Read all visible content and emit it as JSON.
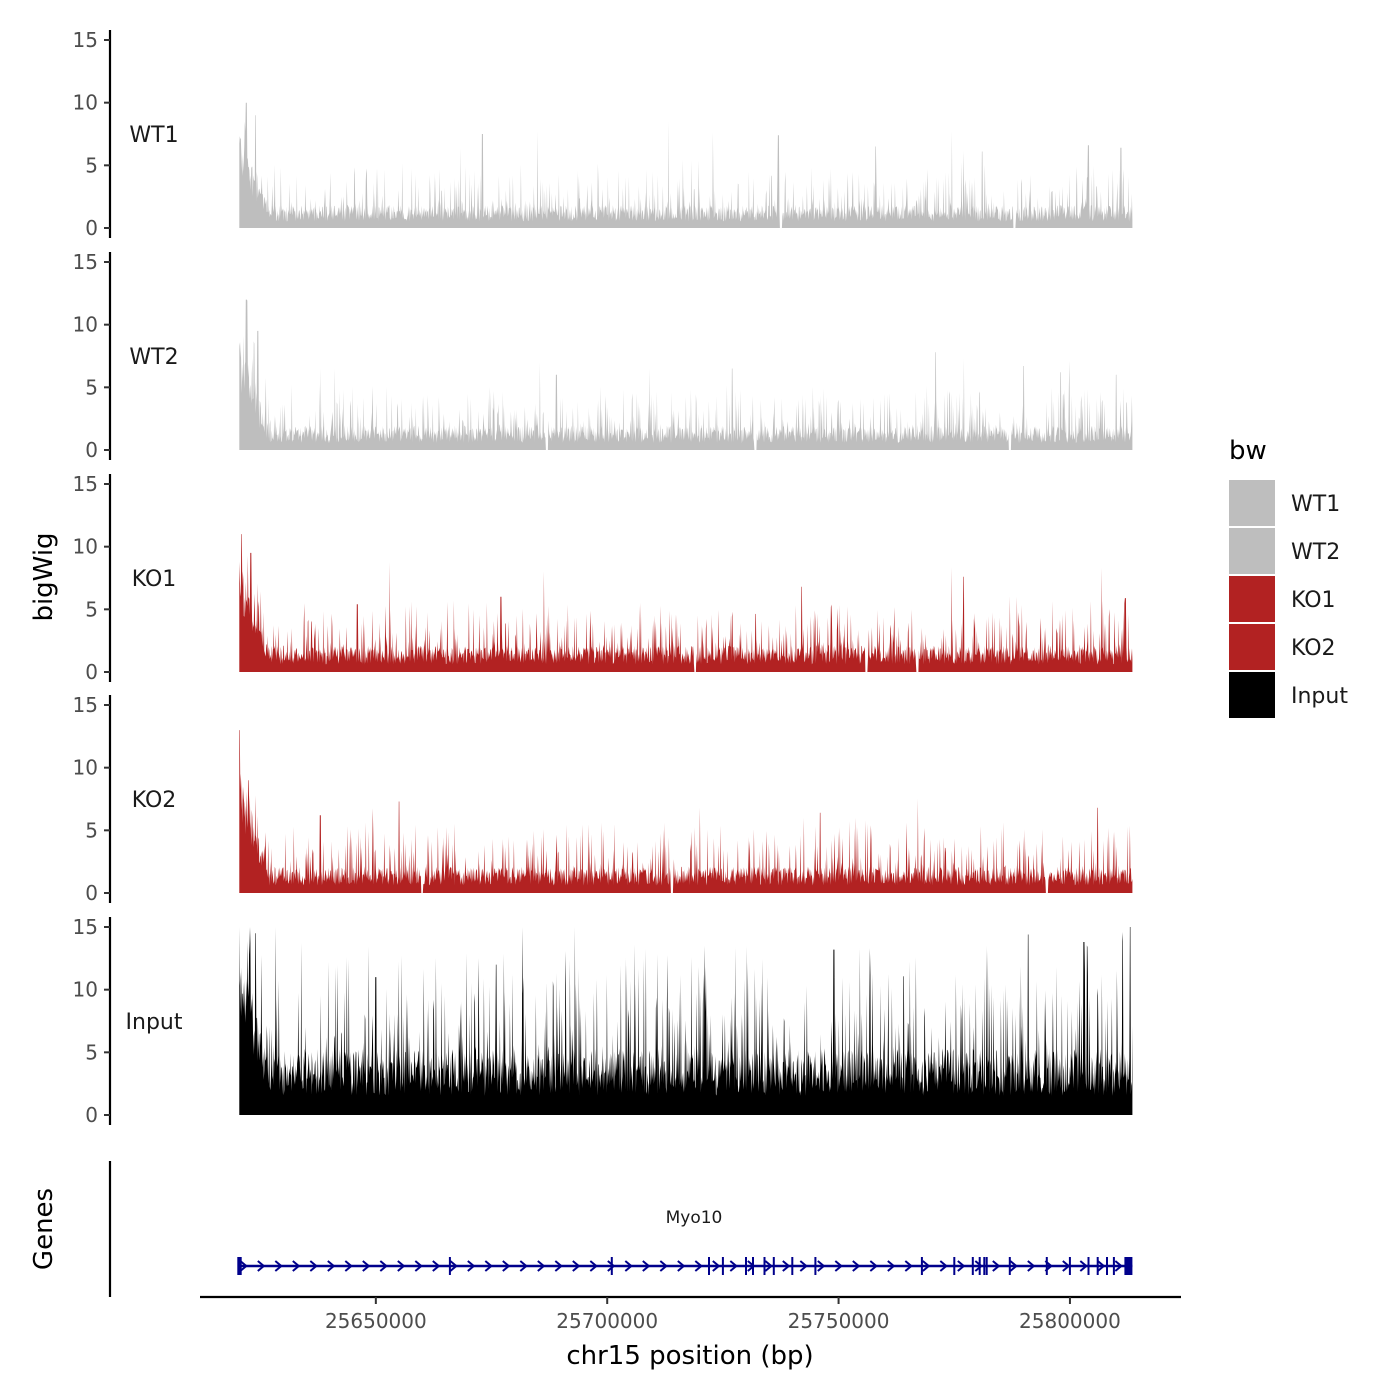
{
  "chart_data": {
    "type": "area",
    "title": "",
    "xlabel": "chr15 position (bp)",
    "ylabel": "bigWig",
    "xlim": [
      25612000,
      25824000
    ],
    "data_range": [
      25620500,
      25813500
    ],
    "ylim": [
      0,
      15
    ],
    "y_ticks": [
      "0",
      "5",
      "10",
      "15"
    ],
    "x_ticks": [
      {
        "value": 25650000,
        "label": "25650000"
      },
      {
        "value": 25700000,
        "label": "25700000"
      },
      {
        "value": 25750000,
        "label": "25750000"
      },
      {
        "value": 25800000,
        "label": "25800000"
      }
    ],
    "series": [
      {
        "name": "WT1",
        "label": "WT1",
        "color": "#BEBEBE",
        "baseline": 1.3,
        "noise": 1.6,
        "peak": 10.0,
        "peaks": [
          [
            25622000,
            10.0
          ],
          [
            25624000,
            9.0
          ],
          [
            25673000,
            7.5
          ],
          [
            25737000,
            7.4
          ],
          [
            25758000,
            6.5
          ],
          [
            25781000,
            6.1
          ],
          [
            25804000,
            6.6
          ],
          [
            25811000,
            6.4
          ]
        ],
        "gaps": [
          25737500,
          25788000
        ]
      },
      {
        "name": "WT2",
        "label": "WT2",
        "color": "#BEBEBE",
        "baseline": 1.4,
        "noise": 1.6,
        "peak": 12.0,
        "peaks": [
          [
            25622000,
            12.0
          ],
          [
            25624500,
            9.5
          ],
          [
            25689000,
            6.0
          ],
          [
            25727000,
            6.5
          ],
          [
            25771000,
            7.8
          ],
          [
            25790000,
            6.7
          ],
          [
            25798000,
            6.2
          ],
          [
            25810000,
            6.0
          ]
        ],
        "gaps": [
          25687000,
          25732000,
          25787000
        ]
      },
      {
        "name": "KO1",
        "label": "KO1",
        "color": "#B22222",
        "baseline": 1.5,
        "noise": 1.7,
        "peak": 11.0,
        "peaks": [
          [
            25621000,
            11.0
          ],
          [
            25623000,
            9.5
          ],
          [
            25646000,
            5.4
          ],
          [
            25677000,
            6.0
          ],
          [
            25742000,
            6.8
          ],
          [
            25756000,
            6.0
          ],
          [
            25777000,
            7.6
          ],
          [
            25812000,
            5.9
          ]
        ],
        "gaps": [
          25719000,
          25756000,
          25767000
        ]
      },
      {
        "name": "KO2",
        "label": "KO2",
        "color": "#B22222",
        "baseline": 1.5,
        "noise": 1.8,
        "peak": 13.0,
        "peaks": [
          [
            25620500,
            13.0
          ],
          [
            25622500,
            9.0
          ],
          [
            25638000,
            6.2
          ],
          [
            25655000,
            7.3
          ],
          [
            25714000,
            6.5
          ],
          [
            25746000,
            6.4
          ],
          [
            25806000,
            6.8
          ]
        ],
        "gaps": [
          25660000,
          25714000,
          25795000
        ]
      },
      {
        "name": "Input",
        "label": "Input",
        "color": "#000000",
        "baseline": 3.8,
        "noise": 4.0,
        "peak": 15.0,
        "peaks": [
          [
            25624000,
            14.5
          ],
          [
            25650000,
            11.0
          ],
          [
            25676000,
            12.0
          ],
          [
            25749000,
            13.2
          ],
          [
            25791000,
            14.4
          ],
          [
            25803000,
            13.8
          ],
          [
            25813000,
            15.0
          ]
        ],
        "gaps": []
      }
    ],
    "legend": {
      "title": "bw",
      "position": "right"
    },
    "gene_track": {
      "ylabel": "Genes",
      "gene_name": "Myo10",
      "strand": "+",
      "color": "#00008B",
      "start": 25620500,
      "end": 25813500,
      "exons": [
        25620800,
        25666000,
        25701000,
        25722000,
        25725000,
        25730000,
        25731500,
        25734000,
        25736000,
        25740000,
        25745000,
        25768000,
        25775000,
        25779000,
        25780500,
        25781500,
        25782000,
        25787000,
        25795000,
        25800000,
        25804000,
        25806000,
        25808000,
        25809500,
        25812000,
        25813000
      ]
    }
  }
}
